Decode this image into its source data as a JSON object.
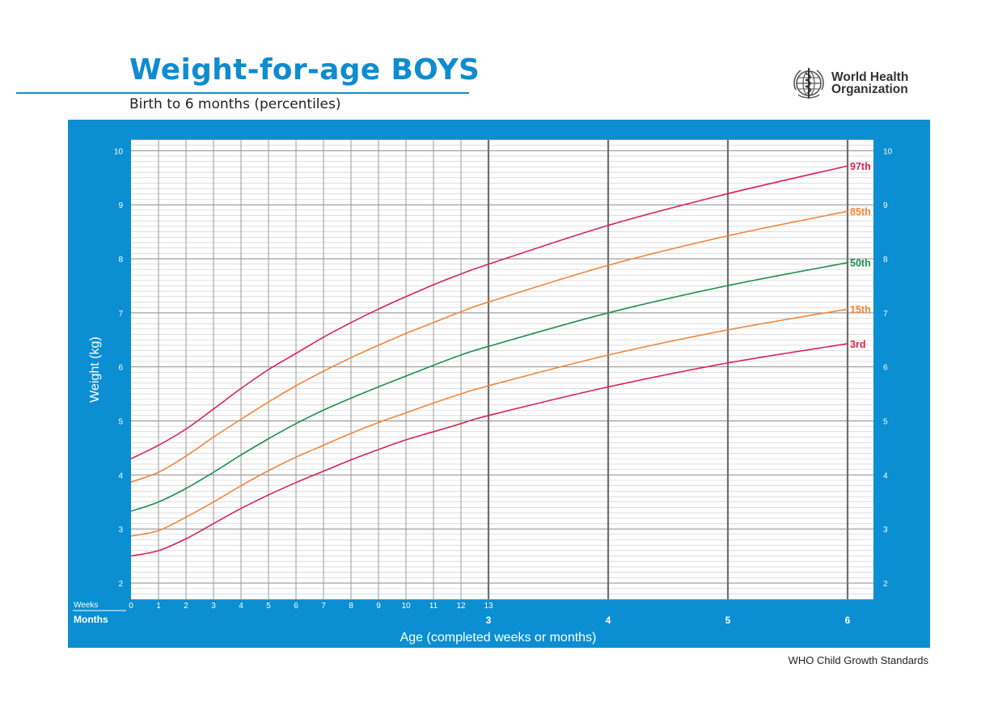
{
  "header": {
    "title": "Weight-for-age BOYS",
    "subtitle": "Birth to 6 months (percentiles)",
    "organization_line1": "World Health",
    "organization_line2": "Organization",
    "logo_icon": "who-emblem-icon"
  },
  "footer": {
    "text": "WHO Child Growth Standards"
  },
  "colors": {
    "frame": "#0b8ed2",
    "p97": "#d6264f",
    "p85": "#f0873a",
    "p50": "#1e8f4e",
    "p15": "#f0873a",
    "p3": "#d6264f"
  },
  "chart_data": {
    "type": "line",
    "title": "Weight-for-age BOYS",
    "subtitle": "Birth to 6 months (percentiles)",
    "ylabel": "Weight (kg)",
    "xlabel": "Age (completed weeks or months)",
    "ylim": [
      1.7,
      10.2
    ],
    "y_ticks": [
      2,
      3,
      4,
      5,
      6,
      7,
      8,
      9,
      10
    ],
    "x_weeks_row_label": "Weeks",
    "x_months_row_label": "Months",
    "x_week_ticks": [
      "0",
      "1",
      "2",
      "3",
      "4",
      "5",
      "6",
      "7",
      "8",
      "9",
      "10",
      "11",
      "12",
      "13"
    ],
    "x_month_ticks": [
      "3",
      "4",
      "5",
      "6"
    ],
    "grid": true,
    "age_weeks": [
      0,
      1,
      2,
      3,
      4,
      5,
      6,
      7,
      8,
      9,
      10,
      11,
      12,
      13,
      17.4,
      21.7,
      26.1
    ],
    "series": [
      {
        "name": "97th",
        "color": "#d6264f",
        "values": [
          4.3,
          4.55,
          4.85,
          5.22,
          5.6,
          5.95,
          6.25,
          6.55,
          6.82,
          7.07,
          7.3,
          7.52,
          7.72,
          7.9,
          8.62,
          9.2,
          9.72
        ]
      },
      {
        "name": "85th",
        "color": "#f0873a",
        "values": [
          3.87,
          4.05,
          4.35,
          4.7,
          5.03,
          5.35,
          5.65,
          5.92,
          6.17,
          6.4,
          6.62,
          6.82,
          7.02,
          7.2,
          7.88,
          8.42,
          8.88
        ]
      },
      {
        "name": "50th",
        "color": "#1e8f4e",
        "values": [
          3.33,
          3.5,
          3.75,
          4.05,
          4.37,
          4.67,
          4.95,
          5.2,
          5.42,
          5.63,
          5.83,
          6.03,
          6.22,
          6.38,
          7.0,
          7.5,
          7.93
        ]
      },
      {
        "name": "15th",
        "color": "#f0873a",
        "values": [
          2.87,
          2.97,
          3.22,
          3.5,
          3.8,
          4.08,
          4.33,
          4.55,
          4.77,
          4.97,
          5.15,
          5.33,
          5.5,
          5.65,
          6.22,
          6.68,
          7.07
        ]
      },
      {
        "name": "3rd",
        "color": "#d6264f",
        "values": [
          2.5,
          2.6,
          2.82,
          3.1,
          3.38,
          3.63,
          3.86,
          4.07,
          4.28,
          4.47,
          4.65,
          4.8,
          4.95,
          5.1,
          5.63,
          6.07,
          6.43
        ]
      }
    ]
  }
}
